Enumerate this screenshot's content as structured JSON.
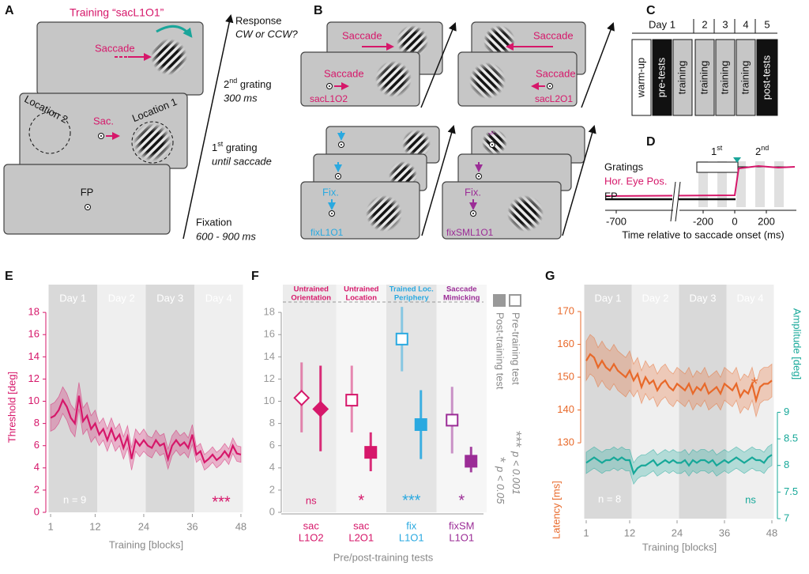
{
  "panels": {
    "A": {
      "letter": "A",
      "title": "Training “sacL1O1”",
      "saccade": "Saccade",
      "response": "Response",
      "response_q": "CW or CCW?",
      "second_num": "2",
      "second_sup": "nd",
      "second_text": " grating",
      "second_time": "300 ms",
      "first_num": "1",
      "first_sup": "st",
      "first_text": " grating",
      "first_time": "until saccade",
      "fixation": "Fixation",
      "fixation_time": "600 - 900 ms",
      "location2": "Location 2",
      "sac": "Sac.",
      "location1": "Location 1",
      "fp": "FP"
    },
    "B": {
      "letter": "B",
      "saccade": "Saccade",
      "fix": "Fix.",
      "conditions": [
        "sacL1O2",
        "sacL2O1",
        "fixL1O1",
        "fixSML1O1"
      ]
    },
    "C": {
      "letter": "C",
      "days": [
        "Day 1",
        "2",
        "3",
        "4",
        "5"
      ],
      "sessions": [
        "warm-up",
        "pre-tests",
        "training",
        "training",
        "training",
        "training",
        "post-tests"
      ],
      "session_fills": [
        "#ffffff",
        "#111111",
        "#c6c6c6",
        "#c6c6c6",
        "#c6c6c6",
        "#c6c6c6",
        "#111111"
      ]
    },
    "D": {
      "letter": "D",
      "first_num": "1",
      "first_sup": "st",
      "second_num": "2",
      "second_sup": "nd",
      "rows": [
        "Gratings",
        "Hor. Eye Pos.",
        "FP"
      ],
      "xticks": [
        -700,
        -200,
        0,
        200
      ],
      "xlabel": "Time relative to saccade onset (ms)"
    }
  },
  "chart_data": [
    {
      "type": "line",
      "letter": "E",
      "days": [
        "Day 1",
        "Day 2",
        "Day 3",
        "Day 4"
      ],
      "day_bounds": [
        0.5,
        12.5,
        24.5,
        36.5,
        48.5
      ],
      "xlim": [
        0.5,
        48.5
      ],
      "xticks": [
        1,
        12,
        24,
        36,
        48
      ],
      "ylim": [
        0,
        20.5
      ],
      "yticks": [
        0,
        2,
        4,
        6,
        8,
        10,
        12,
        14,
        16,
        18
      ],
      "xlabel": "Training [blocks]",
      "ylabel": "Threshold [deg]",
      "color": "#d6176a",
      "n_label": "n = 9",
      "significance": "***",
      "x": [
        1,
        2,
        3,
        4,
        5,
        6,
        7,
        8,
        9,
        10,
        11,
        12,
        13,
        14,
        15,
        16,
        17,
        18,
        19,
        20,
        21,
        22,
        23,
        24,
        25,
        26,
        27,
        28,
        29,
        30,
        31,
        32,
        33,
        34,
        35,
        36,
        37,
        38,
        39,
        40,
        41,
        42,
        43,
        44,
        45,
        46,
        47,
        48
      ],
      "values": [
        8.5,
        8.7,
        9.2,
        10.1,
        9.5,
        8.5,
        8.0,
        10.5,
        8.2,
        8.7,
        7.5,
        8.0,
        7.0,
        7.5,
        6.5,
        7.5,
        6.5,
        7.0,
        5.8,
        6.8,
        4.8,
        6.5,
        6.0,
        6.5,
        6.0,
        5.8,
        6.5,
        6.0,
        6.2,
        4.8,
        6.0,
        6.5,
        6.0,
        6.3,
        5.8,
        7.0,
        5.2,
        5.5,
        4.5,
        4.8,
        5.2,
        4.7,
        5.0,
        5.5,
        5.0,
        6.0,
        5.3,
        5.2
      ],
      "error": [
        1.2,
        1.2,
        1.2,
        1.2,
        1.2,
        1.2,
        1.2,
        1.2,
        1.2,
        1.2,
        1.2,
        1.2,
        1.0,
        1.0,
        1.0,
        1.0,
        1.0,
        1.0,
        1.0,
        1.0,
        1.0,
        1.0,
        1.0,
        1.0,
        0.9,
        0.9,
        0.9,
        0.9,
        0.9,
        0.9,
        0.9,
        0.9,
        0.9,
        0.9,
        0.9,
        0.9,
        0.7,
        0.7,
        0.7,
        0.7,
        0.7,
        0.7,
        0.7,
        0.7,
        0.7,
        0.7,
        0.7,
        0.7
      ]
    },
    {
      "type": "dot",
      "letter": "F",
      "categories": [
        "sac",
        "sac",
        "fix",
        "fixSM"
      ],
      "subcategories": [
        "L1O2",
        "L2O1",
        "L1O1",
        "L1O1"
      ],
      "group_labels": [
        [
          "Untrained",
          "Orientation"
        ],
        [
          "Untrained",
          "Location"
        ],
        [
          "Trained Loc.",
          "Periphery"
        ],
        [
          "Saccade",
          "Mimicking"
        ]
      ],
      "colors": [
        "#d6176a",
        "#d6176a",
        "#2aa9e0",
        "#9b2c96"
      ],
      "markers": [
        "diamond",
        "square",
        "square",
        "square"
      ],
      "ylim": [
        0,
        20.5
      ],
      "yticks": [
        0,
        2,
        4,
        6,
        8,
        10,
        12,
        14,
        16,
        18
      ],
      "xlabel": "Pre/post-training tests",
      "series": [
        {
          "name": "Pre-training test",
          "filled": false,
          "values": [
            10.3,
            10.1,
            15.6,
            8.3
          ],
          "lower": [
            7.2,
            7.2,
            12.7,
            5.3
          ],
          "upper": [
            13.5,
            13.2,
            18.5,
            11.3
          ]
        },
        {
          "name": "Post-training test",
          "filled": true,
          "values": [
            9.3,
            5.4,
            7.9,
            4.6
          ],
          "lower": [
            5.5,
            3.7,
            4.8,
            3.6
          ],
          "upper": [
            13.2,
            7.2,
            11.0,
            5.9
          ]
        }
      ],
      "significance": [
        "ns",
        "*",
        "***",
        "*"
      ],
      "significance_legend": [
        [
          "***",
          "p < 0.001"
        ],
        [
          "*",
          "p < 0.05"
        ]
      ]
    },
    {
      "type": "line",
      "letter": "G",
      "days": [
        "Day 1",
        "Day 2",
        "Day 3",
        "Day 4"
      ],
      "day_bounds": [
        0.5,
        12.5,
        24.5,
        36.5,
        48.5
      ],
      "xlim": [
        0.5,
        48.5
      ],
      "xticks": [
        1,
        12,
        24,
        36,
        48
      ],
      "ylim": [
        106.9,
        178.2
      ],
      "yticks": [
        130,
        140,
        150,
        160,
        170
      ],
      "y2lim": [
        7,
        11.4
      ],
      "y2ticks": [
        7,
        7.5,
        8,
        8.5,
        9
      ],
      "xlabel": "Training [blocks]",
      "ylabel": "Latency [ms]",
      "y2label": "Amplitude [deg]",
      "n_label": "n = 8",
      "annotations": [
        {
          "text": "*",
          "color": "#e8692a"
        },
        {
          "text": "ns",
          "color": "#17a899"
        }
      ],
      "x": [
        1,
        2,
        3,
        4,
        5,
        6,
        7,
        8,
        9,
        10,
        11,
        12,
        13,
        14,
        15,
        16,
        17,
        18,
        19,
        20,
        21,
        22,
        23,
        24,
        25,
        26,
        27,
        28,
        29,
        30,
        31,
        32,
        33,
        34,
        35,
        36,
        37,
        38,
        39,
        40,
        41,
        42,
        43,
        44,
        45,
        46,
        47,
        48
      ],
      "series": [
        {
          "color": "#e8692a",
          "values": [
            155,
            157,
            156,
            153,
            155,
            153,
            152,
            154,
            152,
            151,
            150,
            152,
            149,
            151,
            147,
            150,
            148,
            149,
            146,
            148,
            149,
            147,
            146,
            148,
            147,
            146,
            148,
            145,
            147,
            146,
            148,
            145,
            146,
            147,
            145,
            148,
            147,
            146,
            148,
            144,
            146,
            145,
            148,
            143,
            147,
            148,
            148,
            149
          ],
          "error": [
            6,
            6,
            6,
            6,
            6,
            6,
            6,
            6,
            6,
            6,
            6,
            6,
            5,
            5,
            5,
            5,
            5,
            5,
            5,
            5,
            5,
            5,
            5,
            5,
            5,
            5,
            5,
            5,
            5,
            5,
            5,
            5,
            5,
            5,
            5,
            5,
            5,
            5,
            5,
            5,
            5,
            5,
            5,
            5,
            5,
            5,
            5,
            5
          ]
        },
        {
          "color": "#17a899",
          "axis": "y2",
          "values": [
            8.05,
            8.1,
            8.15,
            8.1,
            8.05,
            8.1,
            8.1,
            8.15,
            8.1,
            8.15,
            8.1,
            8.1,
            7.85,
            7.95,
            8.0,
            8.0,
            8.05,
            8.1,
            8.0,
            8.05,
            8.1,
            8.05,
            8.1,
            8.05,
            8.05,
            8.1,
            8.0,
            8.1,
            8.05,
            8.1,
            8.1,
            8.05,
            8.1,
            8.0,
            8.05,
            8.1,
            8.05,
            8.1,
            8.15,
            8.1,
            8.05,
            8.1,
            8.15,
            8.1,
            8.1,
            8.05,
            8.15,
            8.2
          ],
          "error": [
            0.2,
            0.2,
            0.2,
            0.2,
            0.2,
            0.2,
            0.2,
            0.2,
            0.2,
            0.2,
            0.2,
            0.2,
            0.2,
            0.2,
            0.2,
            0.2,
            0.2,
            0.2,
            0.2,
            0.2,
            0.2,
            0.2,
            0.2,
            0.2,
            0.2,
            0.2,
            0.2,
            0.2,
            0.2,
            0.2,
            0.2,
            0.2,
            0.2,
            0.2,
            0.2,
            0.2,
            0.2,
            0.2,
            0.2,
            0.2,
            0.2,
            0.2,
            0.2,
            0.2,
            0.2,
            0.2,
            0.2,
            0.2
          ]
        }
      ]
    }
  ]
}
